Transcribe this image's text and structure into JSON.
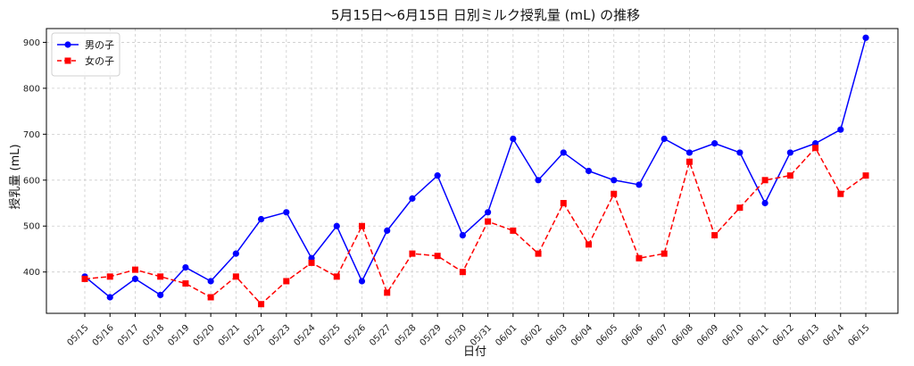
{
  "chart_data": {
    "type": "line",
    "title": "5月15日〜6月15日 日別ミルク授乳量 (mL) の推移",
    "xlabel": "日付",
    "ylabel": "授乳量 (mL)",
    "categories": [
      "05/15",
      "05/16",
      "05/17",
      "05/18",
      "05/19",
      "05/20",
      "05/21",
      "05/22",
      "05/23",
      "05/24",
      "05/25",
      "05/26",
      "05/27",
      "05/28",
      "05/29",
      "05/30",
      "05/31",
      "06/01",
      "06/02",
      "06/03",
      "06/04",
      "06/05",
      "06/06",
      "06/07",
      "06/08",
      "06/09",
      "06/10",
      "06/11",
      "06/12",
      "06/13",
      "06/14",
      "06/15"
    ],
    "yticks": [
      400,
      500,
      600,
      700,
      800,
      900
    ],
    "ylim": [
      310,
      930
    ],
    "grid": true,
    "legend_position": "top-left",
    "series": [
      {
        "name": "男の子",
        "color": "#0000ff",
        "line_style": "solid",
        "marker": "circle",
        "values": [
          390,
          345,
          385,
          350,
          410,
          380,
          440,
          515,
          530,
          430,
          500,
          380,
          490,
          560,
          610,
          480,
          530,
          690,
          600,
          660,
          620,
          600,
          590,
          690,
          660,
          680,
          660,
          550,
          660,
          680,
          710,
          910
        ]
      },
      {
        "name": "女の子",
        "color": "#ff0000",
        "line_style": "dashed",
        "marker": "square",
        "values": [
          385,
          390,
          405,
          390,
          375,
          345,
          390,
          330,
          380,
          420,
          390,
          500,
          355,
          440,
          435,
          400,
          510,
          490,
          440,
          550,
          460,
          570,
          430,
          440,
          640,
          480,
          540,
          600,
          610,
          670,
          570,
          610
        ]
      }
    ]
  }
}
